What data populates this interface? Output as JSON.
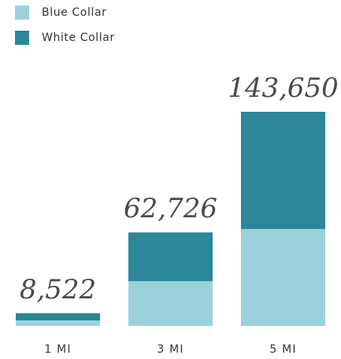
{
  "legend": {
    "items": [
      {
        "label": "Blue Collar",
        "color": "#9cd1dc"
      },
      {
        "label": "White Collar",
        "color": "#2b8799"
      }
    ]
  },
  "chart_data": {
    "type": "bar",
    "stacked": true,
    "categories": [
      "1 MI",
      "3 MI",
      "5 MI"
    ],
    "totals": [
      8522,
      62726,
      143650
    ],
    "total_labels": [
      "8,522",
      "62,726",
      "143,650"
    ],
    "series": [
      {
        "name": "Blue Collar",
        "color": "#9cd1dc",
        "values": [
          3700,
          30000,
          65000
        ]
      },
      {
        "name": "White Collar",
        "color": "#2b8799",
        "values": [
          4822,
          32726,
          78650
        ]
      }
    ],
    "title": "",
    "xlabel": "",
    "ylabel": "",
    "grid": false,
    "legend_position": "top-left"
  }
}
